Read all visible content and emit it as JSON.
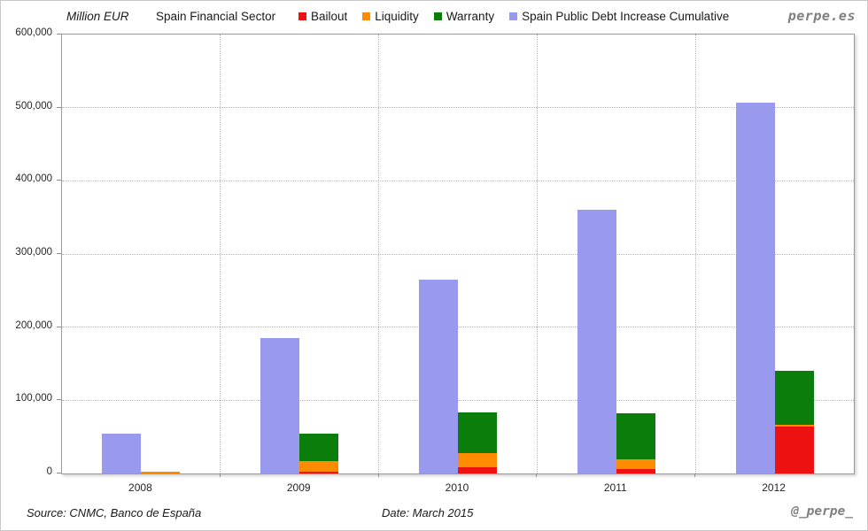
{
  "header": {
    "units_label": "Million EUR",
    "title": "Spain Financial Sector",
    "brand": "perpe.es"
  },
  "legend": {
    "items": [
      {
        "label": "Bailout",
        "color": "#ee1111"
      },
      {
        "label": "Liquidity",
        "color": "#ff8c00"
      },
      {
        "label": "Warranty",
        "color": "#0a7d0a"
      },
      {
        "label": "Spain Public Debt Increase Cumulative",
        "color": "#9999ee"
      }
    ]
  },
  "footer": {
    "source": "Source: CNMC, Banco de España",
    "date": "Date: March 2015",
    "handle": "@_perpe_"
  },
  "colors": {
    "bailout": "#ee1111",
    "liquidity": "#ff8c00",
    "warranty": "#0a7d0a",
    "debt": "#9999ee",
    "grid": "#b5b5b5",
    "plot_border": "#9a9a9a",
    "brand_gray": "#7f7f7f"
  },
  "chart_data": {
    "type": "bar",
    "title": "Spain Financial Sector",
    "units": "Million EUR",
    "categories": [
      "2008",
      "2009",
      "2010",
      "2011",
      "2012"
    ],
    "stacked_series": [
      {
        "name": "Bailout",
        "color": "#ee1111",
        "values": [
          0,
          2000,
          9000,
          6000,
          64000
        ]
      },
      {
        "name": "Liquidity",
        "color": "#ff8c00",
        "values": [
          3000,
          15000,
          19000,
          13000,
          2000
        ]
      },
      {
        "name": "Warranty",
        "color": "#0a7d0a",
        "values": [
          0,
          37000,
          56000,
          63000,
          74000
        ]
      }
    ],
    "side_series": {
      "name": "Spain Public Debt Increase Cumulative",
      "color": "#9999ee",
      "values": [
        55000,
        185000,
        265000,
        360000,
        507000
      ]
    },
    "ylim": [
      0,
      600000
    ],
    "ytick_step": 100000,
    "yticks": [
      "600,000",
      "500,000",
      "400,000",
      "300,000",
      "200,000",
      "100,000",
      "0"
    ],
    "grid": true,
    "legend_position": "top"
  }
}
